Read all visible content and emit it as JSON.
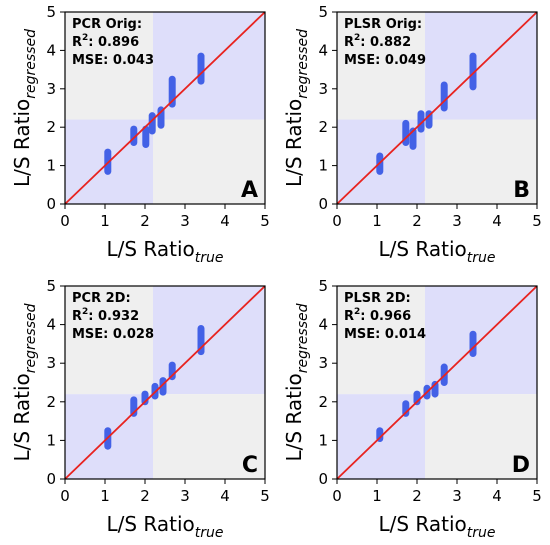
{
  "panels_common": {
    "xlabel": "L/S Ratio",
    "xlabel_sub": "true",
    "ylabel": "L/S Ratio",
    "ylabel_sub": "regressed",
    "r2_prefix": "R",
    "r2_sup": "2",
    "colors": {
      "points": "#4361e6",
      "identity_line": "#e8231f",
      "quadrant_blue": "#dedefa",
      "quadrant_gray": "#efefef",
      "axis": "#000000"
    }
  },
  "chart_data": [
    {
      "type": "scatter",
      "panel_letter": "A",
      "stats": {
        "name": "PCR Orig:",
        "r2": "0.896",
        "mse": "MSE: 0.043"
      },
      "xlim": [
        0,
        5
      ],
      "ylim": [
        0,
        5
      ],
      "xticks": [
        "0",
        "1",
        "2",
        "3",
        "4",
        "5"
      ],
      "yticks": [
        "0",
        "1",
        "2",
        "3",
        "4",
        "5"
      ],
      "threshold": 2.2,
      "identity_line": [
        [
          0,
          0
        ],
        [
          5,
          5
        ]
      ],
      "groups": [
        {
          "x": 1.07,
          "y_range": [
            0.85,
            1.35
          ]
        },
        {
          "x": 1.72,
          "y_range": [
            1.6,
            1.95
          ]
        },
        {
          "x": 2.02,
          "y_range": [
            1.55,
            1.95
          ]
        },
        {
          "x": 2.18,
          "y_range": [
            1.9,
            2.3
          ]
        },
        {
          "x": 2.4,
          "y_range": [
            2.05,
            2.45
          ]
        },
        {
          "x": 2.68,
          "y_range": [
            2.6,
            3.25
          ]
        },
        {
          "x": 3.4,
          "y_range": [
            3.2,
            3.85
          ]
        }
      ]
    },
    {
      "type": "scatter",
      "panel_letter": "B",
      "stats": {
        "name": "PLSR Orig:",
        "r2": "0.882",
        "mse": "MSE: 0.049"
      },
      "xlim": [
        0,
        5
      ],
      "ylim": [
        0,
        5
      ],
      "xticks": [
        "0",
        "1",
        "2",
        "3",
        "4",
        "5"
      ],
      "yticks": [
        "0",
        "1",
        "2",
        "3",
        "4",
        "5"
      ],
      "threshold": 2.2,
      "identity_line": [
        [
          0,
          0
        ],
        [
          5,
          5
        ]
      ],
      "groups": [
        {
          "x": 1.07,
          "y_range": [
            0.85,
            1.25
          ]
        },
        {
          "x": 1.72,
          "y_range": [
            1.6,
            2.1
          ]
        },
        {
          "x": 1.9,
          "y_range": [
            1.5,
            1.9
          ]
        },
        {
          "x": 2.1,
          "y_range": [
            1.95,
            2.35
          ]
        },
        {
          "x": 2.3,
          "y_range": [
            2.05,
            2.35
          ]
        },
        {
          "x": 2.68,
          "y_range": [
            2.5,
            3.1
          ]
        },
        {
          "x": 3.4,
          "y_range": [
            3.05,
            3.85
          ]
        }
      ]
    },
    {
      "type": "scatter",
      "panel_letter": "C",
      "stats": {
        "name": "PCR 2D:",
        "r2": "0.932",
        "mse": "MSE: 0.028"
      },
      "xlim": [
        0,
        5
      ],
      "ylim": [
        0,
        5
      ],
      "xticks": [
        "0",
        "1",
        "2",
        "3",
        "4",
        "5"
      ],
      "yticks": [
        "0",
        "1",
        "2",
        "3",
        "4",
        "5"
      ],
      "threshold": 2.2,
      "identity_line": [
        [
          0,
          0
        ],
        [
          5,
          5
        ]
      ],
      "groups": [
        {
          "x": 1.07,
          "y_range": [
            0.85,
            1.25
          ]
        },
        {
          "x": 1.72,
          "y_range": [
            1.7,
            2.05
          ]
        },
        {
          "x": 2.0,
          "y_range": [
            2.0,
            2.2
          ]
        },
        {
          "x": 2.25,
          "y_range": [
            2.15,
            2.4
          ]
        },
        {
          "x": 2.45,
          "y_range": [
            2.25,
            2.55
          ]
        },
        {
          "x": 2.68,
          "y_range": [
            2.65,
            2.95
          ]
        },
        {
          "x": 3.4,
          "y_range": [
            3.3,
            3.9
          ]
        }
      ]
    },
    {
      "type": "scatter",
      "panel_letter": "D",
      "stats": {
        "name": "PLSR 2D:",
        "r2": "0.966",
        "mse": "MSE: 0.014"
      },
      "xlim": [
        0,
        5
      ],
      "ylim": [
        0,
        5
      ],
      "xticks": [
        "0",
        "1",
        "2",
        "3",
        "4",
        "5"
      ],
      "yticks": [
        "0",
        "1",
        "2",
        "3",
        "4",
        "5"
      ],
      "threshold": 2.2,
      "identity_line": [
        [
          0,
          0
        ],
        [
          5,
          5
        ]
      ],
      "groups": [
        {
          "x": 1.07,
          "y_range": [
            1.05,
            1.25
          ]
        },
        {
          "x": 1.72,
          "y_range": [
            1.7,
            1.95
          ]
        },
        {
          "x": 2.0,
          "y_range": [
            2.0,
            2.2
          ]
        },
        {
          "x": 2.25,
          "y_range": [
            2.15,
            2.35
          ]
        },
        {
          "x": 2.45,
          "y_range": [
            2.2,
            2.45
          ]
        },
        {
          "x": 2.68,
          "y_range": [
            2.5,
            2.9
          ]
        },
        {
          "x": 3.4,
          "y_range": [
            3.25,
            3.75
          ]
        }
      ]
    }
  ]
}
